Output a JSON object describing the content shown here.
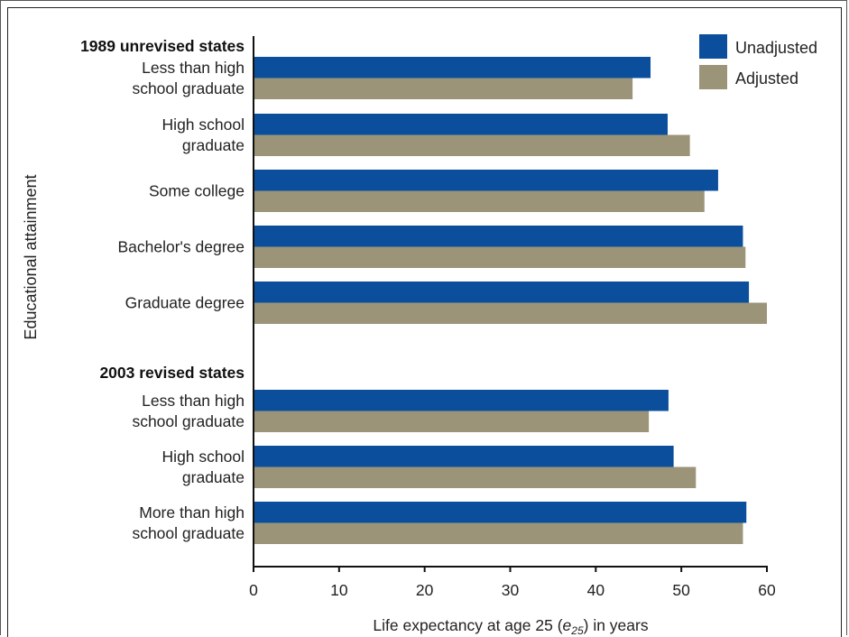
{
  "chart_data": {
    "type": "bar",
    "orientation": "horizontal",
    "xlabel_prefix": "Life expectancy at age 25 (",
    "xlabel_symbol": "e",
    "xlabel_subscript": "25",
    "xlabel_suffix": ") in years",
    "ylabel": "Educational attainment",
    "xlim": [
      0,
      60
    ],
    "xticks": [
      0,
      10,
      20,
      30,
      40,
      50,
      60
    ],
    "legend_position": "top-right",
    "grid": false,
    "colors": {
      "Unadjusted": "#0b4f9c",
      "Adjusted": "#9b9478"
    },
    "series_names": [
      "Unadjusted",
      "Adjusted"
    ],
    "groups": [
      {
        "title": "1989 unrevised states",
        "categories": [
          {
            "label_lines": [
              "Less than high",
              "school graduate"
            ],
            "Unadjusted": 46.4,
            "Adjusted": 44.3
          },
          {
            "label_lines": [
              "High school",
              "graduate"
            ],
            "Unadjusted": 48.4,
            "Adjusted": 51.0
          },
          {
            "label_lines": [
              "Some college"
            ],
            "Unadjusted": 54.3,
            "Adjusted": 52.7
          },
          {
            "label_lines": [
              "Bachelor's degree"
            ],
            "Unadjusted": 57.2,
            "Adjusted": 57.5
          },
          {
            "label_lines": [
              "Graduate degree"
            ],
            "Unadjusted": 57.9,
            "Adjusted": 60.0
          }
        ]
      },
      {
        "title": "2003 revised states",
        "categories": [
          {
            "label_lines": [
              "Less than high",
              "school graduate"
            ],
            "Unadjusted": 48.5,
            "Adjusted": 46.2
          },
          {
            "label_lines": [
              "High school",
              "graduate"
            ],
            "Unadjusted": 49.1,
            "Adjusted": 51.7
          },
          {
            "label_lines": [
              "More than high",
              "school graduate"
            ],
            "Unadjusted": 57.6,
            "Adjusted": 57.2
          }
        ]
      }
    ]
  }
}
